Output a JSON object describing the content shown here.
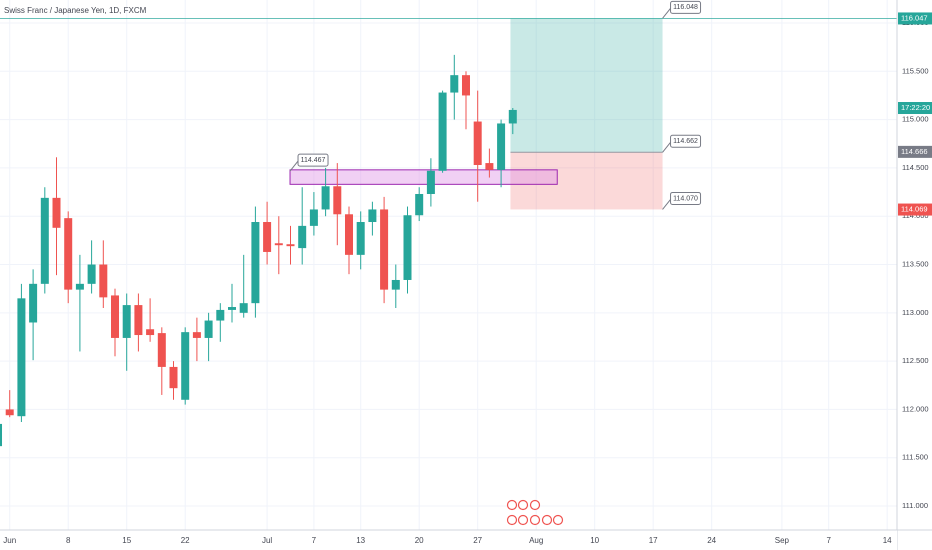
{
  "chart_data": {
    "type": "candlestick",
    "title": "Swiss Franc / Japanese Yen, 1D, FXCM",
    "up_color": "#26a69a",
    "down_color": "#ef5350",
    "grid": true,
    "open": [
      111.62,
      112.0,
      111.93,
      112.9,
      113.3,
      114.19,
      113.98,
      113.24,
      113.3,
      113.5,
      113.18,
      112.74,
      113.08,
      112.83,
      112.79,
      112.44,
      112.1,
      112.8,
      112.74,
      112.92,
      113.03,
      113.0,
      113.1,
      113.94,
      113.72,
      113.71,
      113.67,
      113.9,
      114.07,
      114.31,
      114.02,
      113.6,
      113.94,
      114.07,
      113.24,
      113.34,
      114.01,
      114.23,
      114.47,
      115.28,
      115.46,
      114.98,
      114.55,
      114.48,
      114.96
    ],
    "high": [
      111.95,
      112.2,
      113.3,
      113.45,
      114.3,
      114.61,
      114.05,
      113.6,
      113.75,
      113.75,
      113.25,
      113.2,
      113.2,
      113.15,
      112.85,
      112.5,
      112.85,
      112.95,
      113.0,
      113.1,
      113.3,
      113.6,
      114.1,
      114.15,
      114.0,
      113.9,
      114.3,
      114.25,
      114.5,
      114.55,
      114.1,
      114.05,
      114.15,
      114.2,
      113.5,
      114.1,
      114.3,
      114.6,
      115.3,
      115.67,
      115.5,
      115.3,
      114.7,
      115.0,
      115.12
    ],
    "low": [
      111.6,
      111.92,
      111.87,
      112.51,
      113.2,
      113.39,
      113.1,
      112.6,
      113.2,
      113.05,
      112.55,
      112.4,
      112.6,
      112.7,
      112.15,
      112.1,
      112.05,
      112.5,
      112.5,
      112.7,
      112.9,
      112.95,
      112.95,
      113.5,
      113.4,
      113.5,
      113.5,
      113.8,
      114.0,
      113.7,
      113.4,
      113.45,
      113.8,
      113.1,
      113.05,
      113.2,
      113.95,
      114.1,
      114.45,
      115.0,
      114.9,
      114.15,
      114.4,
      114.3,
      114.85
    ],
    "close": [
      111.85,
      111.94,
      113.15,
      113.3,
      114.19,
      113.88,
      113.24,
      113.3,
      113.5,
      113.16,
      112.74,
      113.08,
      112.77,
      112.77,
      112.44,
      112.22,
      112.8,
      112.74,
      112.92,
      113.03,
      113.06,
      113.1,
      113.94,
      113.63,
      113.7,
      113.69,
      113.9,
      114.07,
      114.31,
      114.02,
      113.6,
      113.94,
      114.07,
      113.24,
      113.34,
      114.01,
      114.23,
      114.47,
      115.28,
      115.46,
      115.25,
      114.53,
      114.48,
      114.96,
      115.1
    ],
    "xlim": [
      0.17,
      76.84
    ],
    "xticks": [
      {
        "value": 1,
        "label": "Jun"
      },
      {
        "value": 6,
        "label": "8"
      },
      {
        "value": 11,
        "label": "15"
      },
      {
        "value": 16,
        "label": "22"
      },
      {
        "value": 23,
        "label": "Jul"
      },
      {
        "value": 27,
        "label": "7"
      },
      {
        "value": 31,
        "label": "13"
      },
      {
        "value": 36,
        "label": "20"
      },
      {
        "value": 41,
        "label": "27"
      },
      {
        "value": 46,
        "label": "Aug"
      },
      {
        "value": 51,
        "label": "10"
      },
      {
        "value": 56,
        "label": "17"
      },
      {
        "value": 61,
        "label": "24"
      },
      {
        "value": 67,
        "label": "Sep"
      },
      {
        "value": 71,
        "label": "7"
      },
      {
        "value": 76,
        "label": "14"
      }
    ],
    "ylim": [
      110.752,
      116.238
    ],
    "yticks": [
      {
        "value": 111,
        "label": "111.000"
      },
      {
        "value": 111.5,
        "label": "111.500"
      },
      {
        "value": 112,
        "label": "112.000"
      },
      {
        "value": 112.5,
        "label": "112.500"
      },
      {
        "value": 113,
        "label": "113.000"
      },
      {
        "value": 113.5,
        "label": "113.500"
      },
      {
        "value": 114,
        "label": "114.000"
      },
      {
        "value": 114.5,
        "label": "114.500"
      },
      {
        "value": 115,
        "label": "115.000"
      },
      {
        "value": 115.5,
        "label": "115.500"
      },
      {
        "value": 116,
        "label": "116.000"
      }
    ],
    "zone": {
      "low": 114.33,
      "high": 114.48,
      "x_range": [
        24.96,
        47.8
      ],
      "label": {
        "value": 114.467,
        "label": "114.467"
      }
    },
    "position": {
      "x_range": [
        43.8,
        56.8
      ],
      "target": {
        "value": 116.048,
        "label": "116.048"
      },
      "entry": {
        "value": 114.662,
        "label": "114.662"
      },
      "stop": {
        "value": 114.07,
        "label": "114.070"
      }
    },
    "price_labels": [
      {
        "value": 116.047,
        "label": "116.047",
        "color": "#26a69a"
      },
      {
        "value": 115.12,
        "label": "17:22:20",
        "color": "#26a69a"
      },
      {
        "value": 114.666,
        "label": "114.666",
        "color": "#787b86"
      },
      {
        "value": 114.069,
        "label": "114.069",
        "color": "#ef5350"
      }
    ]
  }
}
